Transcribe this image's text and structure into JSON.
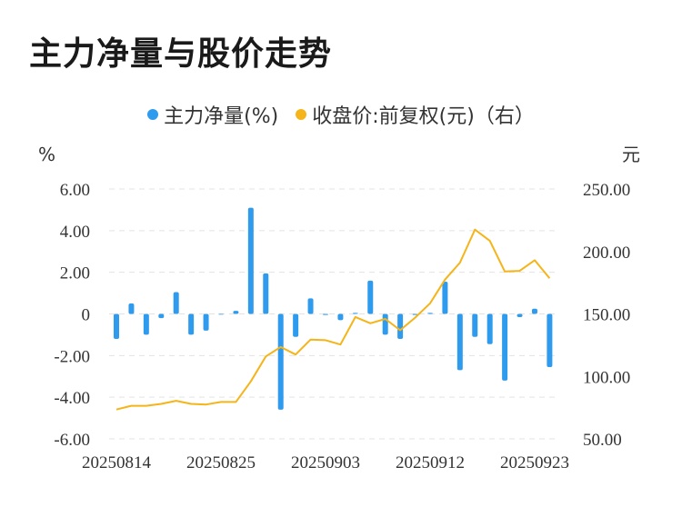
{
  "title": "主力净量与股价走势",
  "colors": {
    "bar": "#2f9bef",
    "line": "#f5b418",
    "grid": "#e3e3e3",
    "text": "#333333"
  },
  "chart_data": {
    "type": "bar+line",
    "legend": [
      {
        "label": "主力净量(%)",
        "color": "#2f9bef"
      },
      {
        "label": "收盘价:前复权(元)（右）",
        "color": "#f5b418"
      }
    ],
    "left_unit": "%",
    "right_unit": "元",
    "y_left": {
      "min": -6,
      "max": 6,
      "ticks": [
        6,
        4,
        2,
        0,
        -2,
        -4,
        -6
      ],
      "tick_labels": [
        "6.00",
        "4.00",
        "2.00",
        "0",
        "-2.00",
        "-4.00",
        "-6.00"
      ]
    },
    "y_right": {
      "min": 50,
      "max": 250,
      "ticks": [
        250,
        200,
        150,
        100,
        50
      ],
      "tick_labels": [
        "250.00",
        "200.00",
        "150.00",
        "100.00",
        "50.00"
      ]
    },
    "x_tick_labels": [
      {
        "label": "20250814",
        "index": 0
      },
      {
        "label": "20250825",
        "index": 7
      },
      {
        "label": "20250903",
        "index": 14
      },
      {
        "label": "20250912",
        "index": 21
      },
      {
        "label": "20250923",
        "index": 28
      }
    ],
    "series_bar": {
      "name": "主力净量(%)",
      "values": [
        -1.2,
        0.5,
        -1.0,
        -0.2,
        1.05,
        -1.0,
        -0.8,
        0.0,
        0.15,
        5.1,
        1.95,
        -4.6,
        -1.1,
        0.75,
        -0.05,
        -0.3,
        0.05,
        1.6,
        -1.0,
        -1.2,
        -0.05,
        0.05,
        1.55,
        -2.7,
        -1.1,
        -1.45,
        -3.2,
        -0.15,
        0.25,
        -2.55
      ]
    },
    "series_line": {
      "name": "收盘价:前复权(元)（右）",
      "values": [
        73.5,
        76.5,
        76.5,
        78.0,
        80.5,
        78.0,
        77.5,
        79.5,
        79.5,
        96.0,
        116.0,
        123.5,
        117.5,
        129.5,
        129.0,
        125.5,
        147.5,
        142.5,
        146.0,
        137.0,
        147.0,
        158.5,
        177.5,
        191.0,
        217.5,
        208.5,
        184.0,
        184.5,
        193.0,
        178.5
      ]
    }
  }
}
